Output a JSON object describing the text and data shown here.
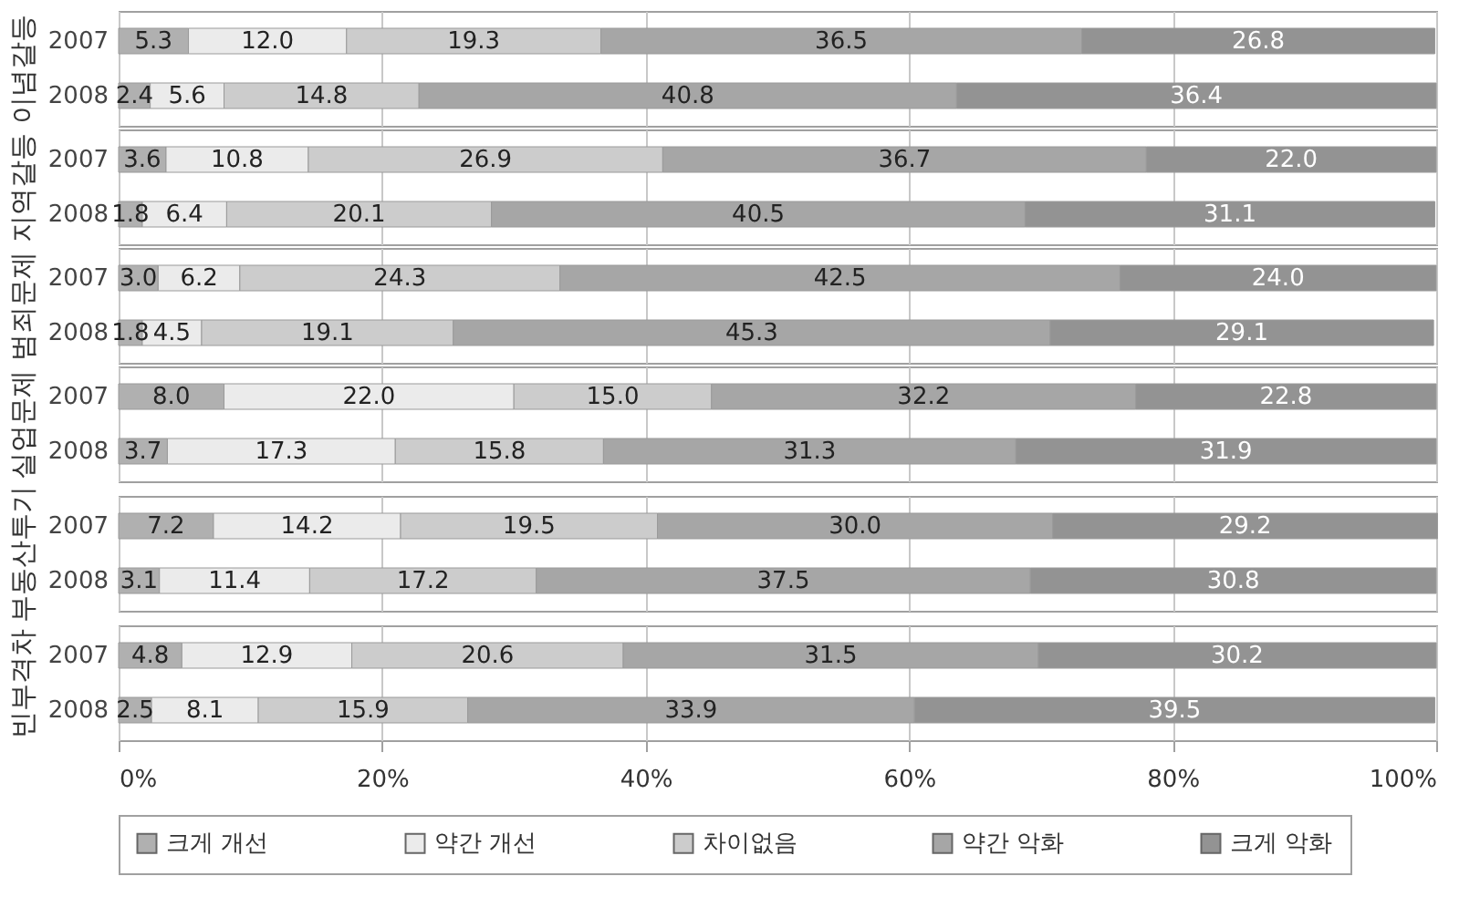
{
  "chart_data": [
    {
      "type": "bar",
      "orientation": "horizontal",
      "stacked": true,
      "ylabel": "이념갈등",
      "categories": [
        "2007",
        "2008"
      ],
      "series": [
        {
          "name": "크게 개선",
          "color": "#b0b0b0",
          "values": [
            5.3,
            2.4
          ],
          "value_labels": [
            "5.3",
            "2.4"
          ]
        },
        {
          "name": "약간 개선",
          "color": "#ebebeb",
          "values": [
            12.0,
            5.6
          ],
          "value_labels": [
            "12.0",
            "5.6"
          ]
        },
        {
          "name": "차이없음",
          "color": "#cccccc",
          "values": [
            19.3,
            14.8
          ],
          "value_labels": [
            "19.3",
            "14.8"
          ]
        },
        {
          "name": "약간 악화",
          "color": "#a6a6a6",
          "values": [
            36.5,
            40.8
          ],
          "value_labels": [
            "36.5",
            "40.8"
          ]
        },
        {
          "name": "크게 악화",
          "color": "#939393",
          "values": [
            26.8,
            36.4
          ],
          "value_labels": [
            "26.8",
            "36.4"
          ]
        }
      ],
      "xlim": [
        0,
        100
      ],
      "xticks": [
        {
          "value": 0,
          "label": null
        },
        {
          "value": 20,
          "label": null
        },
        {
          "value": 40,
          "label": null
        },
        {
          "value": 60,
          "label": null
        },
        {
          "value": 80,
          "label": null
        },
        {
          "value": 100,
          "label": null
        }
      ],
      "grid": "x",
      "tick_labels": "y",
      "legend": "bottom"
    },
    {
      "type": "bar",
      "orientation": "horizontal",
      "stacked": true,
      "ylabel": "지역갈등",
      "categories": [
        "2007",
        "2008"
      ],
      "series": [
        {
          "name": "크게 개선",
          "color": "#b0b0b0",
          "values": [
            3.6,
            1.8
          ],
          "value_labels": [
            "3.6",
            "1.8"
          ]
        },
        {
          "name": "약간 개선",
          "color": "#ebebeb",
          "values": [
            10.8,
            6.4
          ],
          "value_labels": [
            "10.8",
            "6.4"
          ]
        },
        {
          "name": "차이없음",
          "color": "#cccccc",
          "values": [
            26.9,
            20.1
          ],
          "value_labels": [
            "26.9",
            "20.1"
          ]
        },
        {
          "name": "약간 악화",
          "color": "#a6a6a6",
          "values": [
            36.7,
            40.5
          ],
          "value_labels": [
            "36.7",
            "40.5"
          ]
        },
        {
          "name": "크게 악화",
          "color": "#939393",
          "values": [
            22.0,
            31.1
          ],
          "value_labels": [
            "22.0",
            "31.1"
          ]
        }
      ],
      "xlim": [
        0,
        100
      ],
      "xticks": [
        {
          "value": 0,
          "label": null
        },
        {
          "value": 20,
          "label": null
        },
        {
          "value": 40,
          "label": null
        },
        {
          "value": 60,
          "label": null
        },
        {
          "value": 80,
          "label": null
        },
        {
          "value": 100,
          "label": null
        }
      ],
      "grid": "x",
      "tick_labels": "y",
      "legend": "bottom"
    },
    {
      "type": "bar",
      "orientation": "horizontal",
      "stacked": true,
      "ylabel": "범죄문제",
      "categories": [
        "2007",
        "2008"
      ],
      "series": [
        {
          "name": "크게 개선",
          "color": "#b0b0b0",
          "values": [
            3.0,
            1.8
          ],
          "value_labels": [
            "3.0",
            "1.8"
          ]
        },
        {
          "name": "약간 개선",
          "color": "#ebebeb",
          "values": [
            6.2,
            4.5
          ],
          "value_labels": [
            "6.2",
            "4.5"
          ]
        },
        {
          "name": "차이없음",
          "color": "#cccccc",
          "values": [
            24.3,
            19.1
          ],
          "value_labels": [
            "24.3",
            "19.1"
          ]
        },
        {
          "name": "약간 악화",
          "color": "#a6a6a6",
          "values": [
            42.5,
            45.3
          ],
          "value_labels": [
            "42.5",
            "45.3"
          ]
        },
        {
          "name": "크게 악화",
          "color": "#939393",
          "values": [
            24.0,
            29.1
          ],
          "value_labels": [
            "24.0",
            "29.1"
          ]
        }
      ],
      "xlim": [
        0,
        100
      ],
      "xticks": [
        {
          "value": 0,
          "label": null
        },
        {
          "value": 20,
          "label": null
        },
        {
          "value": 40,
          "label": null
        },
        {
          "value": 60,
          "label": null
        },
        {
          "value": 80,
          "label": null
        },
        {
          "value": 100,
          "label": null
        }
      ],
      "grid": "x",
      "tick_labels": "y",
      "legend": "bottom"
    },
    {
      "type": "bar",
      "orientation": "horizontal",
      "stacked": true,
      "ylabel": "실업문제",
      "categories": [
        "2007",
        "2008"
      ],
      "series": [
        {
          "name": "크게 개선",
          "color": "#b0b0b0",
          "values": [
            8.0,
            3.7
          ],
          "value_labels": [
            "8.0",
            "3.7"
          ]
        },
        {
          "name": "약간 개선",
          "color": "#ebebeb",
          "values": [
            22.0,
            17.3
          ],
          "value_labels": [
            "22.0",
            "17.3"
          ]
        },
        {
          "name": "차이없음",
          "color": "#cccccc",
          "values": [
            15.0,
            15.8
          ],
          "value_labels": [
            "15.0",
            "15.8"
          ]
        },
        {
          "name": "약간 악화",
          "color": "#a6a6a6",
          "values": [
            32.2,
            31.3
          ],
          "value_labels": [
            "32.2",
            "31.3"
          ]
        },
        {
          "name": "크게 악화",
          "color": "#939393",
          "values": [
            22.8,
            31.9
          ],
          "value_labels": [
            "22.8",
            "31.9"
          ]
        }
      ],
      "xlim": [
        0,
        100
      ],
      "xticks": [
        {
          "value": 0,
          "label": null
        },
        {
          "value": 20,
          "label": null
        },
        {
          "value": 40,
          "label": null
        },
        {
          "value": 60,
          "label": null
        },
        {
          "value": 80,
          "label": null
        },
        {
          "value": 100,
          "label": null
        }
      ],
      "grid": "x",
      "tick_labels": "y",
      "legend": "bottom"
    },
    {
      "type": "bar",
      "orientation": "horizontal",
      "stacked": true,
      "ylabel": "부동산투기",
      "categories": [
        "2007",
        "2008"
      ],
      "series": [
        {
          "name": "크게 개선",
          "color": "#b0b0b0",
          "values": [
            7.2,
            3.1
          ],
          "value_labels": [
            "7.2",
            "3.1"
          ]
        },
        {
          "name": "약간 개선",
          "color": "#ebebeb",
          "values": [
            14.2,
            11.4
          ],
          "value_labels": [
            "14.2",
            "11.4"
          ]
        },
        {
          "name": "차이없음",
          "color": "#cccccc",
          "values": [
            19.5,
            17.2
          ],
          "value_labels": [
            "19.5",
            "17.2"
          ]
        },
        {
          "name": "약간 악화",
          "color": "#a6a6a6",
          "values": [
            30.0,
            37.5
          ],
          "value_labels": [
            "30.0",
            "37.5"
          ]
        },
        {
          "name": "크게 악화",
          "color": "#939393",
          "values": [
            29.2,
            30.8
          ],
          "value_labels": [
            "29.2",
            "30.8"
          ]
        }
      ],
      "xlim": [
        0,
        100
      ],
      "xticks": [
        {
          "value": 0,
          "label": null
        },
        {
          "value": 20,
          "label": null
        },
        {
          "value": 40,
          "label": null
        },
        {
          "value": 60,
          "label": null
        },
        {
          "value": 80,
          "label": null
        },
        {
          "value": 100,
          "label": null
        }
      ],
      "grid": "x",
      "tick_labels": "y",
      "legend": "bottom"
    },
    {
      "type": "bar",
      "orientation": "horizontal",
      "stacked": true,
      "ylabel": "빈부격차",
      "categories": [
        "2007",
        "2008"
      ],
      "series": [
        {
          "name": "크게 개선",
          "color": "#b0b0b0",
          "values": [
            4.8,
            2.5
          ],
          "value_labels": [
            "4.8",
            "2.5"
          ]
        },
        {
          "name": "약간 개선",
          "color": "#ebebeb",
          "values": [
            12.9,
            8.1
          ],
          "value_labels": [
            "12.9",
            "8.1"
          ]
        },
        {
          "name": "차이없음",
          "color": "#cccccc",
          "values": [
            20.6,
            15.9
          ],
          "value_labels": [
            "20.6",
            "15.9"
          ]
        },
        {
          "name": "약간 악화",
          "color": "#a6a6a6",
          "values": [
            31.5,
            33.9
          ],
          "value_labels": [
            "31.5",
            "33.9"
          ]
        },
        {
          "name": "크게 악화",
          "color": "#939393",
          "values": [
            30.2,
            39.5
          ],
          "value_labels": [
            "30.2",
            "39.5"
          ]
        }
      ],
      "xlim": [
        0,
        100
      ],
      "xticks": [
        {
          "value": 0,
          "label": "0%"
        },
        {
          "value": 20,
          "label": "20%"
        },
        {
          "value": 40,
          "label": "40%"
        },
        {
          "value": 60,
          "label": "60%"
        },
        {
          "value": 80,
          "label": "80%"
        },
        {
          "value": 100,
          "label": "100%"
        }
      ],
      "grid": "x",
      "legend": "bottom"
    }
  ]
}
